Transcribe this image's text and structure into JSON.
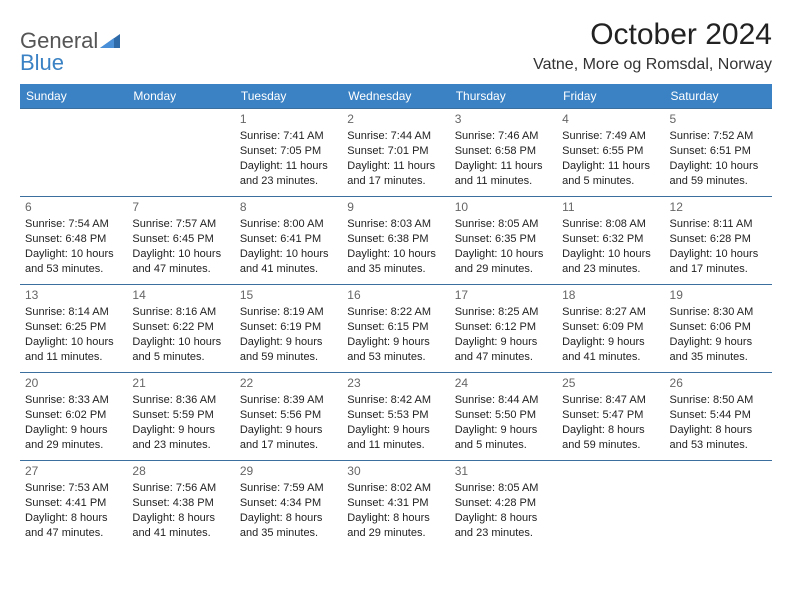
{
  "logo": {
    "text1": "General",
    "text2": "Blue"
  },
  "title": "October 2024",
  "location": "Vatne, More og Romsdal, Norway",
  "day_headers": [
    "Sunday",
    "Monday",
    "Tuesday",
    "Wednesday",
    "Thursday",
    "Friday",
    "Saturday"
  ],
  "colors": {
    "header_bg": "#3b82c4",
    "header_text": "#ffffff",
    "row_border": "#3b6f9e",
    "logo_blue": "#3b82c4",
    "text": "#222222",
    "daynum": "#666666"
  },
  "weeks": [
    [
      null,
      null,
      {
        "n": "1",
        "sr": "Sunrise: 7:41 AM",
        "ss": "Sunset: 7:05 PM",
        "d1": "Daylight: 11 hours",
        "d2": "and 23 minutes."
      },
      {
        "n": "2",
        "sr": "Sunrise: 7:44 AM",
        "ss": "Sunset: 7:01 PM",
        "d1": "Daylight: 11 hours",
        "d2": "and 17 minutes."
      },
      {
        "n": "3",
        "sr": "Sunrise: 7:46 AM",
        "ss": "Sunset: 6:58 PM",
        "d1": "Daylight: 11 hours",
        "d2": "and 11 minutes."
      },
      {
        "n": "4",
        "sr": "Sunrise: 7:49 AM",
        "ss": "Sunset: 6:55 PM",
        "d1": "Daylight: 11 hours",
        "d2": "and 5 minutes."
      },
      {
        "n": "5",
        "sr": "Sunrise: 7:52 AM",
        "ss": "Sunset: 6:51 PM",
        "d1": "Daylight: 10 hours",
        "d2": "and 59 minutes."
      }
    ],
    [
      {
        "n": "6",
        "sr": "Sunrise: 7:54 AM",
        "ss": "Sunset: 6:48 PM",
        "d1": "Daylight: 10 hours",
        "d2": "and 53 minutes."
      },
      {
        "n": "7",
        "sr": "Sunrise: 7:57 AM",
        "ss": "Sunset: 6:45 PM",
        "d1": "Daylight: 10 hours",
        "d2": "and 47 minutes."
      },
      {
        "n": "8",
        "sr": "Sunrise: 8:00 AM",
        "ss": "Sunset: 6:41 PM",
        "d1": "Daylight: 10 hours",
        "d2": "and 41 minutes."
      },
      {
        "n": "9",
        "sr": "Sunrise: 8:03 AM",
        "ss": "Sunset: 6:38 PM",
        "d1": "Daylight: 10 hours",
        "d2": "and 35 minutes."
      },
      {
        "n": "10",
        "sr": "Sunrise: 8:05 AM",
        "ss": "Sunset: 6:35 PM",
        "d1": "Daylight: 10 hours",
        "d2": "and 29 minutes."
      },
      {
        "n": "11",
        "sr": "Sunrise: 8:08 AM",
        "ss": "Sunset: 6:32 PM",
        "d1": "Daylight: 10 hours",
        "d2": "and 23 minutes."
      },
      {
        "n": "12",
        "sr": "Sunrise: 8:11 AM",
        "ss": "Sunset: 6:28 PM",
        "d1": "Daylight: 10 hours",
        "d2": "and 17 minutes."
      }
    ],
    [
      {
        "n": "13",
        "sr": "Sunrise: 8:14 AM",
        "ss": "Sunset: 6:25 PM",
        "d1": "Daylight: 10 hours",
        "d2": "and 11 minutes."
      },
      {
        "n": "14",
        "sr": "Sunrise: 8:16 AM",
        "ss": "Sunset: 6:22 PM",
        "d1": "Daylight: 10 hours",
        "d2": "and 5 minutes."
      },
      {
        "n": "15",
        "sr": "Sunrise: 8:19 AM",
        "ss": "Sunset: 6:19 PM",
        "d1": "Daylight: 9 hours",
        "d2": "and 59 minutes."
      },
      {
        "n": "16",
        "sr": "Sunrise: 8:22 AM",
        "ss": "Sunset: 6:15 PM",
        "d1": "Daylight: 9 hours",
        "d2": "and 53 minutes."
      },
      {
        "n": "17",
        "sr": "Sunrise: 8:25 AM",
        "ss": "Sunset: 6:12 PM",
        "d1": "Daylight: 9 hours",
        "d2": "and 47 minutes."
      },
      {
        "n": "18",
        "sr": "Sunrise: 8:27 AM",
        "ss": "Sunset: 6:09 PM",
        "d1": "Daylight: 9 hours",
        "d2": "and 41 minutes."
      },
      {
        "n": "19",
        "sr": "Sunrise: 8:30 AM",
        "ss": "Sunset: 6:06 PM",
        "d1": "Daylight: 9 hours",
        "d2": "and 35 minutes."
      }
    ],
    [
      {
        "n": "20",
        "sr": "Sunrise: 8:33 AM",
        "ss": "Sunset: 6:02 PM",
        "d1": "Daylight: 9 hours",
        "d2": "and 29 minutes."
      },
      {
        "n": "21",
        "sr": "Sunrise: 8:36 AM",
        "ss": "Sunset: 5:59 PM",
        "d1": "Daylight: 9 hours",
        "d2": "and 23 minutes."
      },
      {
        "n": "22",
        "sr": "Sunrise: 8:39 AM",
        "ss": "Sunset: 5:56 PM",
        "d1": "Daylight: 9 hours",
        "d2": "and 17 minutes."
      },
      {
        "n": "23",
        "sr": "Sunrise: 8:42 AM",
        "ss": "Sunset: 5:53 PM",
        "d1": "Daylight: 9 hours",
        "d2": "and 11 minutes."
      },
      {
        "n": "24",
        "sr": "Sunrise: 8:44 AM",
        "ss": "Sunset: 5:50 PM",
        "d1": "Daylight: 9 hours",
        "d2": "and 5 minutes."
      },
      {
        "n": "25",
        "sr": "Sunrise: 8:47 AM",
        "ss": "Sunset: 5:47 PM",
        "d1": "Daylight: 8 hours",
        "d2": "and 59 minutes."
      },
      {
        "n": "26",
        "sr": "Sunrise: 8:50 AM",
        "ss": "Sunset: 5:44 PM",
        "d1": "Daylight: 8 hours",
        "d2": "and 53 minutes."
      }
    ],
    [
      {
        "n": "27",
        "sr": "Sunrise: 7:53 AM",
        "ss": "Sunset: 4:41 PM",
        "d1": "Daylight: 8 hours",
        "d2": "and 47 minutes."
      },
      {
        "n": "28",
        "sr": "Sunrise: 7:56 AM",
        "ss": "Sunset: 4:38 PM",
        "d1": "Daylight: 8 hours",
        "d2": "and 41 minutes."
      },
      {
        "n": "29",
        "sr": "Sunrise: 7:59 AM",
        "ss": "Sunset: 4:34 PM",
        "d1": "Daylight: 8 hours",
        "d2": "and 35 minutes."
      },
      {
        "n": "30",
        "sr": "Sunrise: 8:02 AM",
        "ss": "Sunset: 4:31 PM",
        "d1": "Daylight: 8 hours",
        "d2": "and 29 minutes."
      },
      {
        "n": "31",
        "sr": "Sunrise: 8:05 AM",
        "ss": "Sunset: 4:28 PM",
        "d1": "Daylight: 8 hours",
        "d2": "and 23 minutes."
      },
      null,
      null
    ]
  ]
}
